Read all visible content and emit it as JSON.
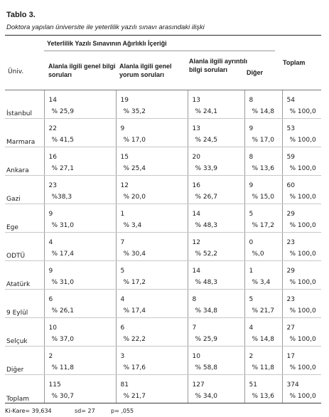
{
  "table_label": "Tablo 3.",
  "caption": "Doktora yapılan üniversite ile yeterlilik yazılı sınavı arasındaki ilişki",
  "header": {
    "group_label": "Yeterlilik Yazılı Sınavının Ağırlıklı İçeriği",
    "univ_col": "Üniv.",
    "col1": "Alanla ilgili genel bilgi soruları",
    "col2": "Alanla ilgili genel yorum soruları",
    "col3": "Alanla ilgili ayrıntılı bilgi soruları",
    "col4": "Diğer",
    "total_col": "Toplam"
  },
  "rows": [
    {
      "univ": "İstanbul",
      "counts": [
        "14",
        "19",
        "13",
        "8",
        "54"
      ],
      "pcts": [
        "% 25,9",
        "% 35,2",
        "% 24,1",
        "% 14,8",
        "% 100,0"
      ]
    },
    {
      "univ": "Marmara",
      "counts": [
        "22",
        "9",
        "13",
        "9",
        "53"
      ],
      "pcts": [
        "% 41,5",
        "% 17,0",
        "% 24,5",
        "% 17,0",
        "% 100,0"
      ]
    },
    {
      "univ": "Ankara",
      "counts": [
        "16",
        "15",
        "20",
        "8",
        "59"
      ],
      "pcts": [
        "% 27,1",
        "% 25,4",
        "% 33,9",
        "% 13,6",
        "% 100,0"
      ]
    },
    {
      "univ": "Gazi",
      "counts": [
        "23",
        "12",
        "16",
        "9",
        "60"
      ],
      "pcts": [
        "%38,3",
        "% 20,0",
        "% 26,7",
        "% 15,0",
        "% 100,0"
      ]
    },
    {
      "univ": "Ege",
      "counts": [
        "9",
        "1",
        "14",
        "5",
        "29"
      ],
      "pcts": [
        "% 31,0",
        "% 3,4",
        "% 48,3",
        "% 17,2",
        "% 100,0"
      ]
    },
    {
      "univ": "ODTÜ",
      "counts": [
        "4",
        "7",
        "12",
        "0",
        "23"
      ],
      "pcts": [
        "% 17,4",
        "% 30,4",
        "% 52,2",
        "%,0",
        "% 100,0"
      ]
    },
    {
      "univ": "Atatürk",
      "counts": [
        "9",
        "5",
        "14",
        "1",
        "29"
      ],
      "pcts": [
        "% 31,0",
        "% 17,2",
        "% 48,3",
        "% 3,4",
        "% 100,0"
      ]
    },
    {
      "univ": "9 Eylül",
      "counts": [
        "6",
        "4",
        "8",
        "5",
        "23"
      ],
      "pcts": [
        "% 26,1",
        "% 17,4",
        "% 34,8",
        "% 21,7",
        "% 100,0"
      ]
    },
    {
      "univ": "Selçuk",
      "counts": [
        "10",
        "6",
        "7",
        "4",
        "27"
      ],
      "pcts": [
        "% 37,0",
        "% 22,2",
        "% 25,9",
        "% 14,8",
        "% 100,0"
      ]
    },
    {
      "univ": "Diğer",
      "counts": [
        "2",
        "3",
        "10",
        "2",
        "17"
      ],
      "pcts": [
        "% 11,8",
        "% 17,6",
        "% 58,8",
        "% 11,8",
        "% 100,0"
      ]
    },
    {
      "univ": "Toplam",
      "counts": [
        "115",
        "81",
        "127",
        "51",
        "374"
      ],
      "pcts": [
        "% 30,7",
        "% 21,7",
        "% 34,0",
        "% 13,6",
        "% 100,0"
      ]
    }
  ],
  "footer": {
    "chi_square": "Ki-Kare= 39,634",
    "sd": "sd= 27",
    "p": "p= ,055"
  }
}
